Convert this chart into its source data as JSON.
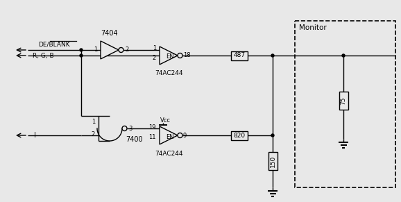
{
  "bg_color": "#e8e8e8",
  "lc": "black",
  "figsize": [
    5.78,
    2.91
  ],
  "dpi": 100,
  "xlim": [
    0,
    578
  ],
  "ylim": [
    291,
    0
  ]
}
